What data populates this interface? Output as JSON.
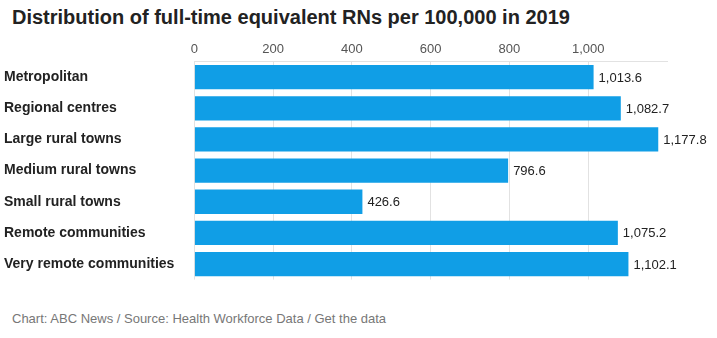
{
  "chart_data": {
    "type": "bar",
    "orientation": "horizontal",
    "title": "Distribution of full-time equivalent RNs per 100,000 in 2019",
    "source": "Chart: ABC News / Source: Health Workforce Data / Get the data",
    "categories": [
      "Metropolitan",
      "Regional centres",
      "Large rural towns",
      "Medium rural towns",
      "Small rural towns",
      "Remote communities",
      "Very remote communities"
    ],
    "values": [
      1013.6,
      1082.7,
      1177.8,
      796.6,
      426.6,
      1075.2,
      1102.1
    ],
    "value_labels": [
      "1,013.6",
      "1,082.7",
      "1,177.8",
      "796.6",
      "426.6",
      "1,075.2",
      "1,102.1"
    ],
    "color": "#109ee6",
    "xlim": [
      0,
      1200
    ],
    "xticks": [
      0,
      200,
      400,
      600,
      800,
      {
        "value": 1000,
        "label": "1,000"
      }
    ],
    "grid": true,
    "data_labels": true
  }
}
